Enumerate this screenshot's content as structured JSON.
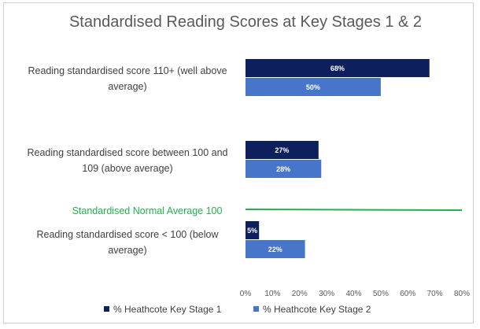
{
  "chart_data": {
    "type": "bar",
    "orientation": "horizontal",
    "title": "Standardised Reading Scores at Key Stages 1 & 2",
    "categories": [
      [
        "Reading standardised score 110+ (well above",
        "average)"
      ],
      [
        "Reading standardised score between 100 and",
        "109 (above average)"
      ],
      [
        "Reading standardised score < 100 (below",
        "average)"
      ]
    ],
    "series": [
      {
        "name": "% Heathcote Key Stage 1",
        "values": [
          68,
          27,
          5
        ],
        "labels": [
          "68%",
          "27%",
          "5%"
        ],
        "color": "#0d1f5c"
      },
      {
        "name": "% Heathcote Key Stage 2",
        "values": [
          50,
          28,
          22
        ],
        "labels": [
          "50%",
          "28%",
          "22%"
        ],
        "color": "#4775c9"
      }
    ],
    "xlim": [
      0,
      80
    ],
    "ticks": [
      "0%",
      "10%",
      "20%",
      "30%",
      "40%",
      "50%",
      "60%",
      "70%",
      "80%"
    ],
    "annotation": {
      "text": "Standardised Normal Average 100",
      "color": "#22b14c"
    },
    "legend": "bottom",
    "grid": false
  }
}
